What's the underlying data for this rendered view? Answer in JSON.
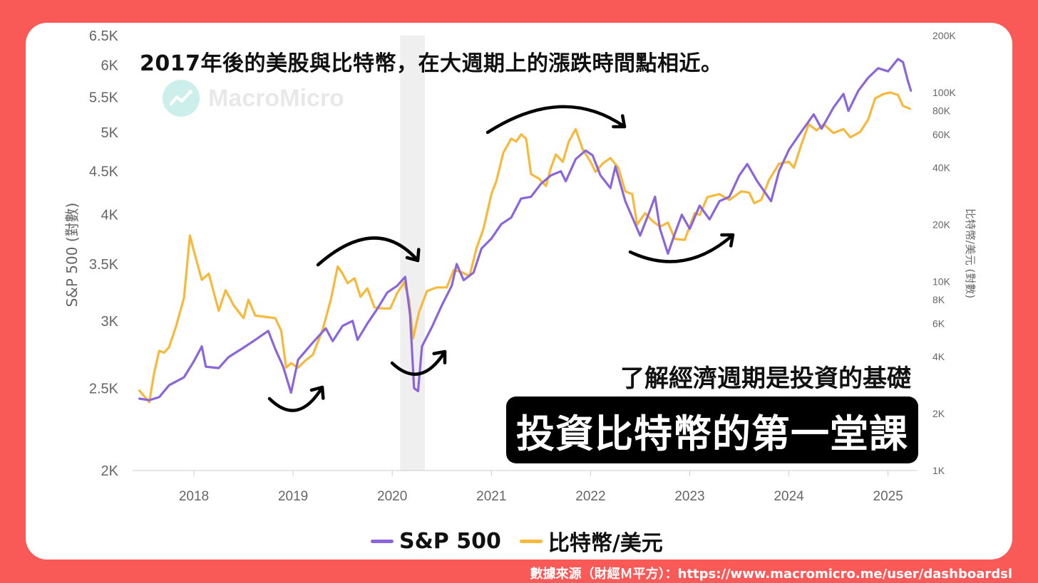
{
  "headline": "2017年後的美股與比特幣，在大週期上的漲跌時間點相近。",
  "watermark": {
    "brand": "MacroMicro",
    "icon": "chart-line-icon"
  },
  "subheadline": "了解經濟週期是投資的基礎",
  "banner": "投資比特幣的第一堂課",
  "source": "數據來源（財經Ｍ平方）：https://www.macromicro.me/user/dashboardsl",
  "colors": {
    "background": "#f95a57",
    "sp500": "#8b66d9",
    "btc": "#f6b93b",
    "shading": "#efefef",
    "arrow": "#000000",
    "axis_text": "#666666"
  },
  "chart_data": {
    "type": "line",
    "left_axis": {
      "label": "S&P 500 (對數)",
      "scale": "log",
      "range": [
        2000,
        6500
      ],
      "ticks": [
        2000,
        2500,
        3000,
        3500,
        4000,
        4500,
        5000,
        5500,
        6000,
        6500
      ],
      "tick_labels": [
        "2K",
        "2.5K",
        "3K",
        "3.5K",
        "4K",
        "4.5K",
        "5K",
        "5.5K",
        "6K",
        "6.5K"
      ]
    },
    "right_axis": {
      "label": "比特幣/美元 (對數)",
      "scale": "log",
      "range": [
        1000,
        200000
      ],
      "ticks": [
        1000,
        2000,
        4000,
        6000,
        8000,
        10000,
        20000,
        40000,
        60000,
        80000,
        100000,
        200000
      ],
      "tick_labels": [
        "1K",
        "2K",
        "4K",
        "6K",
        "8K",
        "10K",
        "20K",
        "40K",
        "60K",
        "80K",
        "100K",
        "200K"
      ]
    },
    "x_axis": {
      "range": [
        2017.4,
        2025.3
      ],
      "ticks": [
        2018,
        2019,
        2020,
        2021,
        2022,
        2023,
        2024,
        2025
      ],
      "tick_labels": [
        "2018",
        "2019",
        "2020",
        "2021",
        "2022",
        "2023",
        "2024",
        "2025"
      ]
    },
    "shaded_region": [
      2020.08,
      2020.33
    ],
    "grid": false,
    "legend_position": "bottom",
    "series": [
      {
        "name": "S&P 500",
        "axis": "left",
        "points": [
          [
            2017.45,
            2430
          ],
          [
            2017.55,
            2420
          ],
          [
            2017.65,
            2440
          ],
          [
            2017.75,
            2520
          ],
          [
            2017.9,
            2575
          ],
          [
            2018.0,
            2690
          ],
          [
            2018.08,
            2800
          ],
          [
            2018.12,
            2650
          ],
          [
            2018.25,
            2640
          ],
          [
            2018.35,
            2720
          ],
          [
            2018.5,
            2790
          ],
          [
            2018.6,
            2840
          ],
          [
            2018.75,
            2920
          ],
          [
            2018.82,
            2780
          ],
          [
            2018.9,
            2650
          ],
          [
            2018.98,
            2470
          ],
          [
            2019.05,
            2700
          ],
          [
            2019.2,
            2830
          ],
          [
            2019.33,
            2940
          ],
          [
            2019.4,
            2840
          ],
          [
            2019.5,
            2960
          ],
          [
            2019.6,
            3000
          ],
          [
            2019.65,
            2850
          ],
          [
            2019.75,
            2980
          ],
          [
            2019.85,
            3100
          ],
          [
            2019.95,
            3240
          ],
          [
            2020.05,
            3300
          ],
          [
            2020.13,
            3380
          ],
          [
            2020.18,
            3050
          ],
          [
            2020.22,
            2500
          ],
          [
            2020.26,
            2480
          ],
          [
            2020.3,
            2800
          ],
          [
            2020.4,
            2950
          ],
          [
            2020.5,
            3130
          ],
          [
            2020.6,
            3300
          ],
          [
            2020.65,
            3500
          ],
          [
            2020.72,
            3350
          ],
          [
            2020.82,
            3420
          ],
          [
            2020.9,
            3650
          ],
          [
            2021.0,
            3750
          ],
          [
            2021.1,
            3900
          ],
          [
            2021.2,
            3970
          ],
          [
            2021.3,
            4180
          ],
          [
            2021.4,
            4200
          ],
          [
            2021.5,
            4350
          ],
          [
            2021.6,
            4450
          ],
          [
            2021.7,
            4500
          ],
          [
            2021.75,
            4380
          ],
          [
            2021.85,
            4650
          ],
          [
            2021.95,
            4760
          ],
          [
            2022.02,
            4700
          ],
          [
            2022.1,
            4450
          ],
          [
            2022.2,
            4300
          ],
          [
            2022.25,
            4560
          ],
          [
            2022.35,
            4150
          ],
          [
            2022.45,
            3900
          ],
          [
            2022.5,
            3780
          ],
          [
            2022.6,
            4050
          ],
          [
            2022.65,
            4200
          ],
          [
            2022.7,
            3850
          ],
          [
            2022.78,
            3600
          ],
          [
            2022.85,
            3800
          ],
          [
            2022.92,
            4000
          ],
          [
            2023.0,
            3850
          ],
          [
            2023.1,
            4100
          ],
          [
            2023.2,
            3950
          ],
          [
            2023.3,
            4150
          ],
          [
            2023.4,
            4200
          ],
          [
            2023.5,
            4450
          ],
          [
            2023.58,
            4590
          ],
          [
            2023.68,
            4380
          ],
          [
            2023.82,
            4150
          ],
          [
            2023.9,
            4500
          ],
          [
            2024.0,
            4770
          ],
          [
            2024.12,
            5000
          ],
          [
            2024.25,
            5250
          ],
          [
            2024.33,
            5050
          ],
          [
            2024.45,
            5350
          ],
          [
            2024.55,
            5550
          ],
          [
            2024.6,
            5300
          ],
          [
            2024.7,
            5600
          ],
          [
            2024.8,
            5800
          ],
          [
            2024.9,
            5950
          ],
          [
            2025.0,
            5900
          ],
          [
            2025.1,
            6100
          ],
          [
            2025.15,
            6050
          ],
          [
            2025.2,
            5750
          ],
          [
            2025.23,
            5600
          ]
        ]
      },
      {
        "name": "比特幣/美元",
        "axis": "right",
        "points": [
          [
            2017.45,
            2650
          ],
          [
            2017.55,
            2300
          ],
          [
            2017.6,
            3300
          ],
          [
            2017.65,
            4300
          ],
          [
            2017.7,
            4200
          ],
          [
            2017.75,
            4500
          ],
          [
            2017.82,
            5800
          ],
          [
            2017.9,
            8200
          ],
          [
            2017.96,
            17500
          ],
          [
            2018.0,
            14500
          ],
          [
            2018.08,
            10200
          ],
          [
            2018.15,
            11000
          ],
          [
            2018.25,
            7000
          ],
          [
            2018.32,
            9000
          ],
          [
            2018.4,
            7500
          ],
          [
            2018.5,
            6400
          ],
          [
            2018.55,
            8000
          ],
          [
            2018.62,
            6600
          ],
          [
            2018.72,
            6500
          ],
          [
            2018.82,
            6400
          ],
          [
            2018.88,
            5500
          ],
          [
            2018.93,
            3500
          ],
          [
            2018.98,
            3700
          ],
          [
            2019.05,
            3500
          ],
          [
            2019.12,
            3800
          ],
          [
            2019.2,
            4100
          ],
          [
            2019.3,
            5600
          ],
          [
            2019.38,
            8000
          ],
          [
            2019.45,
            12000
          ],
          [
            2019.5,
            11000
          ],
          [
            2019.55,
            9800
          ],
          [
            2019.62,
            10400
          ],
          [
            2019.68,
            8300
          ],
          [
            2019.75,
            9200
          ],
          [
            2019.82,
            7300
          ],
          [
            2019.9,
            7200
          ],
          [
            2019.98,
            7200
          ],
          [
            2020.05,
            8700
          ],
          [
            2020.12,
            9900
          ],
          [
            2020.17,
            8000
          ],
          [
            2020.21,
            5000
          ],
          [
            2020.27,
            6900
          ],
          [
            2020.35,
            8900
          ],
          [
            2020.45,
            9300
          ],
          [
            2020.55,
            9300
          ],
          [
            2020.62,
            11500
          ],
          [
            2020.7,
            11200
          ],
          [
            2020.78,
            10700
          ],
          [
            2020.85,
            15000
          ],
          [
            2020.92,
            19000
          ],
          [
            2021.0,
            29000
          ],
          [
            2021.05,
            34000
          ],
          [
            2021.12,
            48000
          ],
          [
            2021.2,
            57000
          ],
          [
            2021.25,
            55000
          ],
          [
            2021.3,
            60000
          ],
          [
            2021.35,
            57000
          ],
          [
            2021.4,
            37000
          ],
          [
            2021.48,
            35000
          ],
          [
            2021.55,
            32000
          ],
          [
            2021.6,
            40000
          ],
          [
            2021.65,
            47000
          ],
          [
            2021.72,
            43000
          ],
          [
            2021.78,
            55000
          ],
          [
            2021.85,
            64000
          ],
          [
            2021.92,
            50000
          ],
          [
            2022.0,
            43000
          ],
          [
            2022.05,
            38000
          ],
          [
            2022.12,
            42000
          ],
          [
            2022.2,
            45000
          ],
          [
            2022.28,
            40000
          ],
          [
            2022.35,
            30000
          ],
          [
            2022.42,
            29000
          ],
          [
            2022.47,
            20000
          ],
          [
            2022.55,
            23000
          ],
          [
            2022.62,
            21000
          ],
          [
            2022.7,
            19500
          ],
          [
            2022.78,
            20500
          ],
          [
            2022.85,
            16800
          ],
          [
            2022.95,
            16600
          ],
          [
            2023.05,
            23000
          ],
          [
            2023.1,
            22500
          ],
          [
            2023.18,
            28000
          ],
          [
            2023.3,
            29000
          ],
          [
            2023.4,
            27000
          ],
          [
            2023.52,
            30000
          ],
          [
            2023.6,
            29500
          ],
          [
            2023.65,
            26000
          ],
          [
            2023.72,
            27000
          ],
          [
            2023.8,
            34500
          ],
          [
            2023.9,
            42000
          ],
          [
            2024.0,
            43000
          ],
          [
            2024.05,
            40000
          ],
          [
            2024.12,
            52000
          ],
          [
            2024.2,
            68000
          ],
          [
            2024.28,
            63000
          ],
          [
            2024.35,
            68000
          ],
          [
            2024.45,
            61000
          ],
          [
            2024.55,
            64000
          ],
          [
            2024.62,
            58000
          ],
          [
            2024.72,
            62000
          ],
          [
            2024.8,
            72000
          ],
          [
            2024.87,
            93000
          ],
          [
            2024.95,
            98000
          ],
          [
            2025.02,
            100000
          ],
          [
            2025.1,
            97000
          ],
          [
            2025.15,
            85000
          ],
          [
            2025.22,
            82000
          ]
        ]
      }
    ]
  }
}
